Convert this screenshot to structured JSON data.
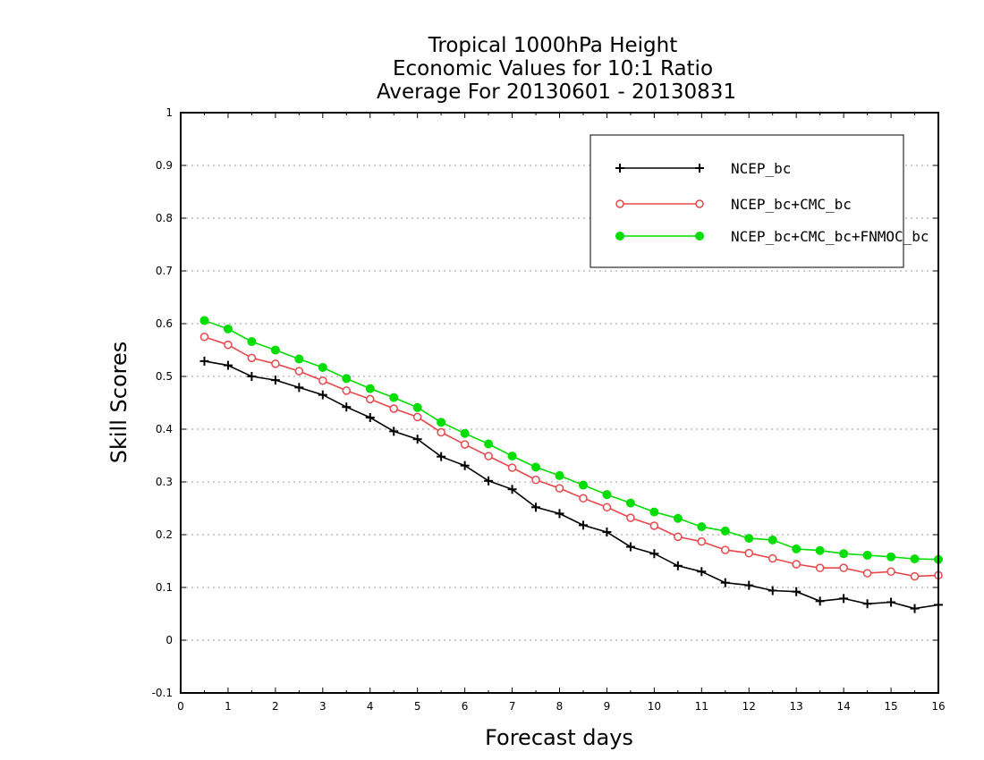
{
  "chart_data": {
    "type": "line",
    "title": [
      "Tropical 1000hPa Height",
      "Economic Values for 10:1 Ratio",
      "Average For 20130601 - 20130831"
    ],
    "xlabel": "Forecast days",
    "ylabel": "Skill Scores",
    "xlim": [
      0,
      16
    ],
    "ylim": [
      -0.1,
      1
    ],
    "xticks": [
      "0",
      "1",
      "2",
      "3",
      "4",
      "5",
      "6",
      "7",
      "8",
      "9",
      "10",
      "11",
      "12",
      "13",
      "14",
      "15",
      "16"
    ],
    "yticks": [
      "-0.1",
      "0",
      "0.1",
      "0.2",
      "0.3",
      "0.4",
      "0.5",
      "0.6",
      "0.7",
      "0.8",
      "0.9",
      "1"
    ],
    "grid": true,
    "legend_position": "top-right",
    "x": [
      0.5,
      1,
      1.5,
      2,
      2.5,
      3,
      3.5,
      4,
      4.5,
      5,
      5.5,
      6,
      6.5,
      7,
      7.5,
      8,
      8.5,
      9,
      9.5,
      10,
      10.5,
      11,
      11.5,
      12,
      12.5,
      13,
      13.5,
      14,
      14.5,
      15,
      15.5,
      16
    ],
    "series": [
      {
        "name": "NCEP_bc",
        "color": "#000000",
        "marker": "plus",
        "values": [
          0.529,
          0.521,
          0.5,
          0.493,
          0.479,
          0.465,
          0.442,
          0.422,
          0.396,
          0.381,
          0.348,
          0.331,
          0.302,
          0.286,
          0.252,
          0.24,
          0.218,
          0.205,
          0.177,
          0.164,
          0.141,
          0.13,
          0.109,
          0.104,
          0.094,
          0.092,
          0.074,
          0.079,
          0.069,
          0.072,
          0.06,
          0.067
        ]
      },
      {
        "name": "NCEP_bc+CMC_bc",
        "color": "#e8474a",
        "marker": "open-circle",
        "values": [
          0.575,
          0.56,
          0.535,
          0.524,
          0.51,
          0.492,
          0.473,
          0.457,
          0.439,
          0.423,
          0.394,
          0.371,
          0.349,
          0.327,
          0.304,
          0.288,
          0.269,
          0.252,
          0.232,
          0.217,
          0.196,
          0.187,
          0.171,
          0.165,
          0.155,
          0.144,
          0.137,
          0.137,
          0.127,
          0.13,
          0.121,
          0.123
        ]
      },
      {
        "name": "NCEP_bc+CMC_bc+FNMOC_bc",
        "color": "#00dd00",
        "marker": "filled-circle",
        "values": [
          0.606,
          0.59,
          0.566,
          0.55,
          0.533,
          0.517,
          0.496,
          0.477,
          0.46,
          0.441,
          0.413,
          0.392,
          0.372,
          0.349,
          0.328,
          0.312,
          0.294,
          0.276,
          0.26,
          0.243,
          0.231,
          0.215,
          0.207,
          0.193,
          0.19,
          0.173,
          0.17,
          0.164,
          0.161,
          0.158,
          0.154,
          0.153
        ]
      }
    ]
  }
}
